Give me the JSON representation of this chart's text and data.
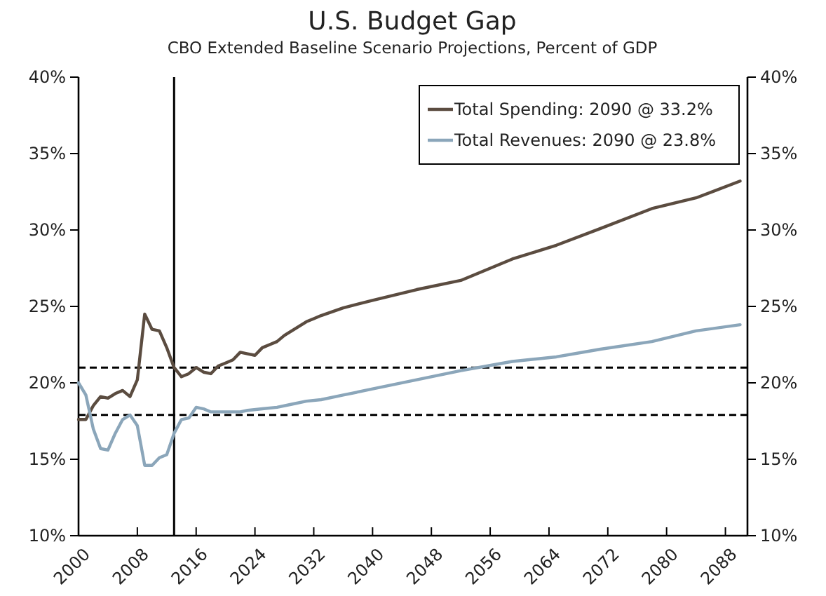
{
  "chart_data": {
    "type": "line",
    "title": "U.S. Budget Gap",
    "subtitle": "CBO Extended Baseline Scenario Projections, Percent of GDP",
    "xlim": [
      2000,
      2091
    ],
    "xticks": [
      2000,
      2008,
      2016,
      2024,
      2032,
      2040,
      2048,
      2056,
      2064,
      2072,
      2080,
      2088
    ],
    "ylim": [
      10,
      40
    ],
    "yticks": [
      {
        "value": 10,
        "label": "10%"
      },
      {
        "value": 15,
        "label": "15%"
      },
      {
        "value": 20,
        "label": "20%"
      },
      {
        "value": 25,
        "label": "25%"
      },
      {
        "value": 30,
        "label": "30%"
      },
      {
        "value": 35,
        "label": "35%"
      },
      {
        "value": 40,
        "label": "40%"
      }
    ],
    "y2lim": [
      10,
      40
    ],
    "y2ticks": [
      {
        "value": 10,
        "label": "10%"
      },
      {
        "value": 15,
        "label": "15%"
      },
      {
        "value": 20,
        "label": "20%"
      },
      {
        "value": 25,
        "label": "25%"
      },
      {
        "value": 30,
        "label": "30%"
      },
      {
        "value": 35,
        "label": "35%"
      },
      {
        "value": 40,
        "label": "40%"
      }
    ],
    "grid": false,
    "legend": "top right",
    "marker": "none",
    "line_style": "solid",
    "series": [
      {
        "name": "Total Spending: 2090 @ 33.2%",
        "color": "#5b4c40",
        "x": [
          2000,
          2001,
          2002,
          2003,
          2004,
          2005,
          2006,
          2007,
          2008,
          2009,
          2010,
          2011,
          2012,
          2013,
          2014,
          2015,
          2016,
          2017,
          2018,
          2019,
          2020,
          2021,
          2022,
          2023,
          2024,
          2025,
          2026,
          2027,
          2028,
          2029,
          2030,
          2031,
          2032,
          2033,
          2036,
          2040,
          2046,
          2052,
          2059,
          2065,
          2071,
          2078,
          2084,
          2090
        ],
        "values": [
          17.6,
          17.6,
          18.5,
          19.1,
          19.0,
          19.3,
          19.5,
          19.1,
          20.2,
          24.5,
          23.5,
          23.4,
          22.3,
          21.0,
          20.4,
          20.6,
          21.0,
          20.7,
          20.6,
          21.1,
          21.3,
          21.5,
          22.0,
          21.9,
          21.8,
          22.3,
          22.5,
          22.7,
          23.1,
          23.4,
          23.7,
          24.0,
          24.2,
          24.4,
          24.9,
          25.4,
          26.1,
          26.7,
          28.1,
          29.0,
          30.1,
          31.4,
          32.1,
          33.2
        ]
      },
      {
        "name": "Total Revenues: 2090 @ 23.8%",
        "color": "#8ba6ba",
        "x": [
          2000,
          2001,
          2002,
          2003,
          2004,
          2005,
          2006,
          2007,
          2008,
          2009,
          2010,
          2011,
          2012,
          2013,
          2014,
          2015,
          2016,
          2017,
          2018,
          2020,
          2022,
          2023,
          2025,
          2027,
          2029,
          2031,
          2033,
          2036,
          2040,
          2046,
          2052,
          2059,
          2065,
          2071,
          2078,
          2084,
          2090
        ],
        "values": [
          20.0,
          19.2,
          17.0,
          15.7,
          15.6,
          16.7,
          17.6,
          17.9,
          17.2,
          14.6,
          14.6,
          15.1,
          15.3,
          16.7,
          17.6,
          17.7,
          18.4,
          18.3,
          18.1,
          18.1,
          18.1,
          18.2,
          18.3,
          18.4,
          18.6,
          18.8,
          18.9,
          19.2,
          19.6,
          20.2,
          20.8,
          21.4,
          21.7,
          22.2,
          22.7,
          23.4,
          23.8
        ]
      }
    ],
    "ref_lines": [
      {
        "axis": "x",
        "value": 2013,
        "color": "#000000",
        "line_style": "solid"
      },
      {
        "axis": "y",
        "value": 21.0,
        "color": "#000000",
        "line_style": "dashed"
      },
      {
        "axis": "y",
        "value": 17.9,
        "color": "#000000",
        "line_style": "dashed"
      }
    ]
  }
}
